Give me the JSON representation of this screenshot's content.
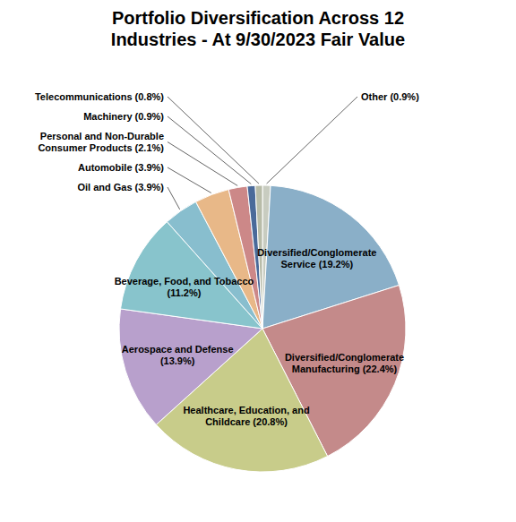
{
  "chart_data": {
    "type": "pie",
    "title": "Portfolio Diversification Across 12\nIndustries - At 9/30/2023 Fair Value",
    "categories": [
      "Other (0.9%)",
      "Diversified/Conglomerate\nService (19.2%)",
      "Diversified/Conglomerate\nManufacturing (22.4%)",
      "Healthcare, Education, and\nChildcare (20.8%)",
      "Aerospace and Defense\n(13.9%)",
      "Beverage, Food, and Tobacco\n(11.2%)",
      "Oil and Gas (3.9%)",
      "Automobile (3.9%)",
      "Personal and Non-Durable\nConsumer Products (2.1%)",
      "Machinery (0.9%)",
      "Telecommunications (0.8%)"
    ],
    "values": [
      0.9,
      19.2,
      22.4,
      20.8,
      13.9,
      11.2,
      3.9,
      3.9,
      2.1,
      0.9,
      0.8
    ],
    "colors": [
      "#c8ccc0",
      "#8aafc8",
      "#c48a8a",
      "#c8cc8a",
      "#b8a0cc",
      "#88c4cc",
      "#88bece",
      "#e8b888",
      "#cc8888",
      "#4a6a9a",
      "#b8bca8"
    ]
  }
}
